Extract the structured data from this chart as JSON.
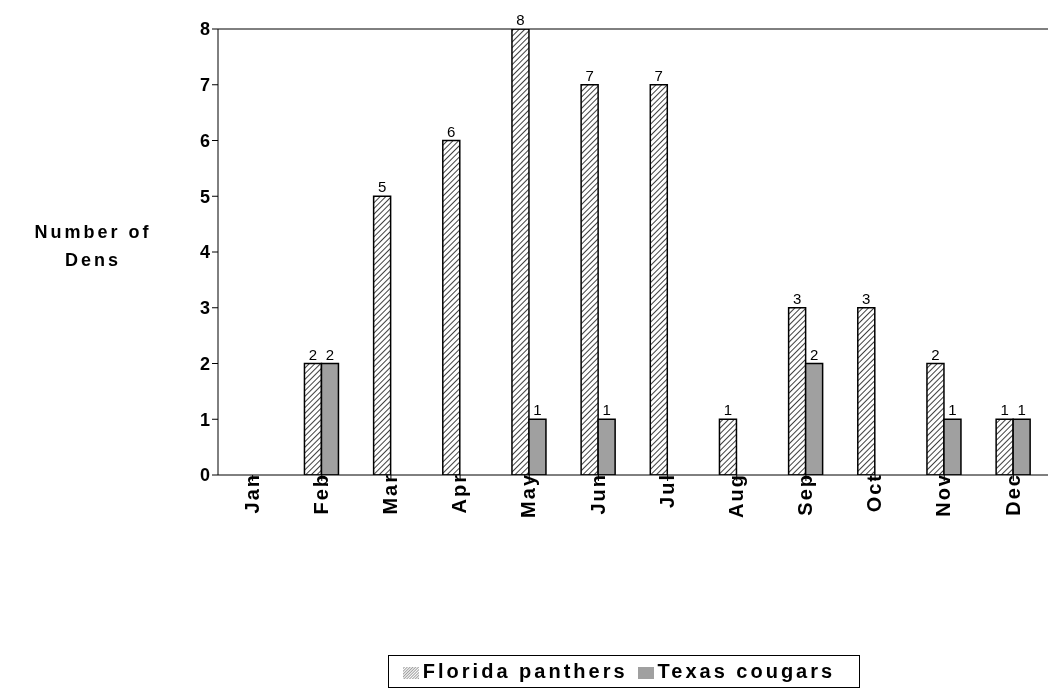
{
  "chart_data": {
    "type": "bar",
    "ylabel": "Number of Dens",
    "categories": [
      "Jan",
      "Feb",
      "Mar",
      "Apr",
      "May",
      "Jun",
      "Jul",
      "Aug",
      "Sep",
      "Oct",
      "Nov",
      "Dec"
    ],
    "series": [
      {
        "name": "Florida panthers",
        "color": "#000000",
        "values": [
          null,
          2,
          5,
          6,
          8,
          7,
          7,
          1,
          3,
          3,
          2,
          1
        ]
      },
      {
        "name": "Texas cougars",
        "color": "#a0a0a0",
        "values": [
          null,
          2,
          null,
          null,
          1,
          1,
          null,
          null,
          2,
          null,
          1,
          1
        ]
      }
    ],
    "ylim": [
      0,
      8
    ],
    "yticks": [
      0,
      1,
      2,
      3,
      4,
      5,
      6,
      7,
      8
    ],
    "grid": false,
    "legend": "bottom",
    "data_labels": true
  }
}
